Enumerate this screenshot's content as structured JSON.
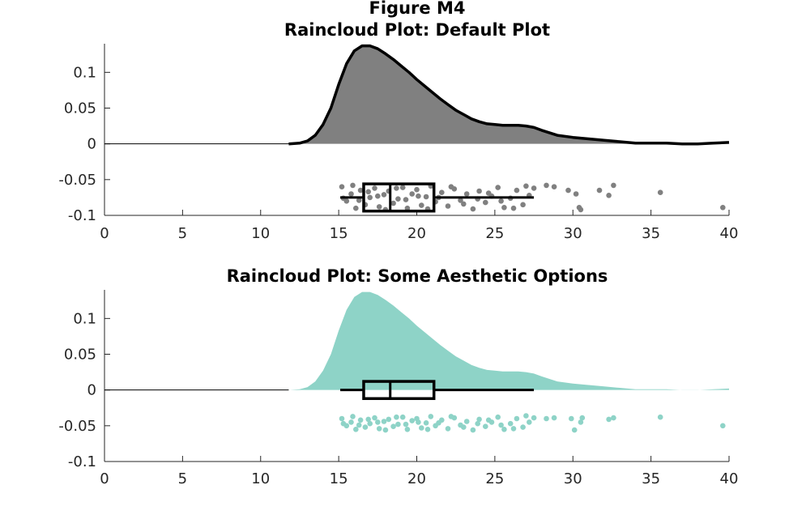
{
  "figure_title": "Figure M4",
  "chart_data": [
    {
      "type": "raincloud",
      "title": "Raincloud Plot: Default Plot",
      "xlabel": "",
      "ylabel": "",
      "xlim": [
        0,
        40
      ],
      "ylim": [
        -0.1,
        0.14
      ],
      "x_ticks": [
        "0",
        "5",
        "10",
        "15",
        "20",
        "25",
        "30",
        "35",
        "40"
      ],
      "y_ticks": [
        "0.1",
        "0.05",
        "0",
        "-0.05",
        "-0.1"
      ],
      "grid": false,
      "colors": {
        "cloud_fill": "#808080",
        "cloud_edge": "#000000",
        "rain": "#808080",
        "box": "#000000",
        "baseline": "#000000"
      },
      "cloud_outline": true,
      "density": {
        "x": [
          11.8,
          12.5,
          13,
          13.5,
          14,
          14.5,
          15,
          15.5,
          16,
          16.5,
          17,
          17.5,
          18,
          18.5,
          19,
          19.5,
          20,
          20.5,
          21,
          21.5,
          22,
          22.5,
          23,
          23.5,
          24,
          24.5,
          25,
          25.5,
          26,
          26.5,
          27,
          27.5,
          28,
          29,
          30,
          31,
          32,
          33,
          34,
          35,
          36,
          37,
          38,
          39,
          40
        ],
        "y": [
          0,
          0.001,
          0.004,
          0.012,
          0.027,
          0.05,
          0.083,
          0.112,
          0.13,
          0.137,
          0.137,
          0.133,
          0.126,
          0.118,
          0.109,
          0.1,
          0.09,
          0.081,
          0.072,
          0.063,
          0.055,
          0.047,
          0.041,
          0.035,
          0.031,
          0.028,
          0.027,
          0.026,
          0.026,
          0.026,
          0.025,
          0.023,
          0.019,
          0.012,
          0.009,
          0.007,
          0.005,
          0.003,
          0.001,
          0.001,
          0.001,
          0,
          0,
          0.001,
          0.002
        ]
      },
      "boxplot": {
        "whisker_low": 15.1,
        "q1": 16.6,
        "median": 18.3,
        "q3": 21.1,
        "whisker_high": 27.5,
        "y_center": -0.075,
        "height": 0.038
      },
      "rain": {
        "y_range": [
          -0.093,
          -0.057
        ],
        "points": [
          [
            15.2,
            -0.06
          ],
          [
            15.5,
            -0.08
          ],
          [
            15.8,
            -0.07
          ],
          [
            16.1,
            -0.09
          ],
          [
            16.4,
            -0.065
          ],
          [
            16.7,
            -0.085
          ],
          [
            17.0,
            -0.075
          ],
          [
            17.3,
            -0.062
          ],
          [
            17.6,
            -0.088
          ],
          [
            17.9,
            -0.071
          ],
          [
            18.2,
            -0.066
          ],
          [
            18.5,
            -0.083
          ],
          [
            18.8,
            -0.077
          ],
          [
            19.1,
            -0.061
          ],
          [
            19.4,
            -0.09
          ],
          [
            19.7,
            -0.07
          ],
          [
            20.0,
            -0.064
          ],
          [
            20.3,
            -0.086
          ],
          [
            20.6,
            -0.074
          ],
          [
            20.9,
            -0.059
          ],
          [
            21.2,
            -0.081
          ],
          [
            21.6,
            -0.068
          ],
          [
            22.0,
            -0.087
          ],
          [
            22.4,
            -0.063
          ],
          [
            22.8,
            -0.079
          ],
          [
            23.2,
            -0.07
          ],
          [
            23.6,
            -0.091
          ],
          [
            24.0,
            -0.066
          ],
          [
            24.4,
            -0.082
          ],
          [
            24.8,
            -0.073
          ],
          [
            25.2,
            -0.061
          ],
          [
            25.6,
            -0.089
          ],
          [
            26.0,
            -0.076
          ],
          [
            26.4,
            -0.065
          ],
          [
            26.8,
            -0.085
          ],
          [
            27.2,
            -0.072
          ],
          [
            27.5,
            -0.062
          ],
          [
            28.3,
            -0.058
          ],
          [
            28.8,
            -0.06
          ],
          [
            29.7,
            -0.065
          ],
          [
            30.2,
            -0.07
          ],
          [
            30.5,
            -0.092
          ],
          [
            31.7,
            -0.065
          ],
          [
            32.3,
            -0.072
          ],
          [
            32.6,
            -0.058
          ],
          [
            35.6,
            -0.068
          ],
          [
            39.6,
            -0.089
          ],
          [
            15.3,
            -0.076
          ],
          [
            15.9,
            -0.058
          ],
          [
            16.3,
            -0.079
          ],
          [
            16.9,
            -0.067
          ],
          [
            17.5,
            -0.073
          ],
          [
            18.0,
            -0.092
          ],
          [
            18.7,
            -0.062
          ],
          [
            19.3,
            -0.078
          ],
          [
            20.1,
            -0.073
          ],
          [
            20.7,
            -0.091
          ],
          [
            21.4,
            -0.075
          ],
          [
            22.2,
            -0.06
          ],
          [
            23.0,
            -0.084
          ],
          [
            23.9,
            -0.077
          ],
          [
            24.6,
            -0.069
          ],
          [
            25.4,
            -0.08
          ],
          [
            26.2,
            -0.09
          ],
          [
            27.0,
            -0.059
          ],
          [
            30.4,
            -0.089
          ]
        ]
      }
    },
    {
      "type": "raincloud",
      "title": "Raincloud Plot: Some Aesthetic Options",
      "xlabel": "",
      "ylabel": "",
      "xlim": [
        0,
        40
      ],
      "ylim": [
        -0.1,
        0.14
      ],
      "x_ticks": [
        "0",
        "5",
        "10",
        "15",
        "20",
        "25",
        "30",
        "35",
        "40"
      ],
      "y_ticks": [
        "0.1",
        "0.05",
        "0",
        "-0.05",
        "-0.1"
      ],
      "grid": false,
      "colors": {
        "cloud_fill": "#8ED3C7",
        "cloud_edge": "#8ED3C7",
        "rain": "#8ED3C7",
        "box": "#000000",
        "baseline": "#000000"
      },
      "cloud_outline": false,
      "density": {
        "x": [
          11.8,
          12.5,
          13,
          13.5,
          14,
          14.5,
          15,
          15.5,
          16,
          16.5,
          17,
          17.5,
          18,
          18.5,
          19,
          19.5,
          20,
          20.5,
          21,
          21.5,
          22,
          22.5,
          23,
          23.5,
          24,
          24.5,
          25,
          25.5,
          26,
          26.5,
          27,
          27.5,
          28,
          29,
          30,
          31,
          32,
          33,
          34,
          35,
          36,
          37,
          38,
          39,
          40
        ],
        "y": [
          0,
          0.001,
          0.004,
          0.012,
          0.027,
          0.05,
          0.083,
          0.112,
          0.13,
          0.137,
          0.137,
          0.133,
          0.126,
          0.118,
          0.109,
          0.1,
          0.09,
          0.081,
          0.072,
          0.063,
          0.055,
          0.047,
          0.041,
          0.035,
          0.031,
          0.028,
          0.027,
          0.026,
          0.026,
          0.026,
          0.025,
          0.023,
          0.019,
          0.012,
          0.009,
          0.007,
          0.005,
          0.003,
          0.001,
          0.001,
          0.001,
          0,
          0,
          0.001,
          0.002
        ]
      },
      "boxplot": {
        "whisker_low": 15.1,
        "q1": 16.6,
        "median": 18.3,
        "q3": 21.1,
        "whisker_high": 27.5,
        "y_center": 0,
        "height": 0.024
      },
      "rain": {
        "y_range": [
          -0.057,
          -0.036
        ],
        "points": [
          [
            15.2,
            -0.04
          ],
          [
            15.5,
            -0.05
          ],
          [
            15.8,
            -0.045
          ],
          [
            16.1,
            -0.055
          ],
          [
            16.4,
            -0.042
          ],
          [
            16.7,
            -0.052
          ],
          [
            17.0,
            -0.047
          ],
          [
            17.3,
            -0.039
          ],
          [
            17.6,
            -0.054
          ],
          [
            17.9,
            -0.044
          ],
          [
            18.2,
            -0.041
          ],
          [
            18.5,
            -0.051
          ],
          [
            18.8,
            -0.048
          ],
          [
            19.1,
            -0.038
          ],
          [
            19.4,
            -0.055
          ],
          [
            19.7,
            -0.043
          ],
          [
            20.0,
            -0.04
          ],
          [
            20.3,
            -0.053
          ],
          [
            20.6,
            -0.046
          ],
          [
            20.9,
            -0.037
          ],
          [
            21.2,
            -0.05
          ],
          [
            21.6,
            -0.042
          ],
          [
            22.0,
            -0.054
          ],
          [
            22.4,
            -0.039
          ],
          [
            22.8,
            -0.049
          ],
          [
            23.2,
            -0.044
          ],
          [
            23.6,
            -0.056
          ],
          [
            24.0,
            -0.041
          ],
          [
            24.4,
            -0.051
          ],
          [
            24.8,
            -0.045
          ],
          [
            25.2,
            -0.038
          ],
          [
            25.6,
            -0.055
          ],
          [
            26.0,
            -0.047
          ],
          [
            26.4,
            -0.04
          ],
          [
            26.8,
            -0.052
          ],
          [
            27.2,
            -0.045
          ],
          [
            27.5,
            -0.039
          ],
          [
            28.3,
            -0.04
          ],
          [
            28.8,
            -0.039
          ],
          [
            29.9,
            -0.04
          ],
          [
            30.1,
            -0.056
          ],
          [
            30.5,
            -0.045
          ],
          [
            30.6,
            -0.039
          ],
          [
            32.3,
            -0.041
          ],
          [
            32.6,
            -0.039
          ],
          [
            35.6,
            -0.038
          ],
          [
            39.6,
            -0.05
          ],
          [
            15.3,
            -0.047
          ],
          [
            15.9,
            -0.037
          ],
          [
            16.3,
            -0.049
          ],
          [
            16.9,
            -0.041
          ],
          [
            17.5,
            -0.045
          ],
          [
            18.0,
            -0.056
          ],
          [
            18.7,
            -0.038
          ],
          [
            19.3,
            -0.048
          ],
          [
            20.1,
            -0.045
          ],
          [
            20.7,
            -0.055
          ],
          [
            21.4,
            -0.046
          ],
          [
            22.2,
            -0.037
          ],
          [
            23.0,
            -0.052
          ],
          [
            23.9,
            -0.047
          ],
          [
            24.6,
            -0.042
          ],
          [
            25.4,
            -0.049
          ],
          [
            26.2,
            -0.054
          ],
          [
            27.0,
            -0.036
          ]
        ]
      }
    }
  ]
}
